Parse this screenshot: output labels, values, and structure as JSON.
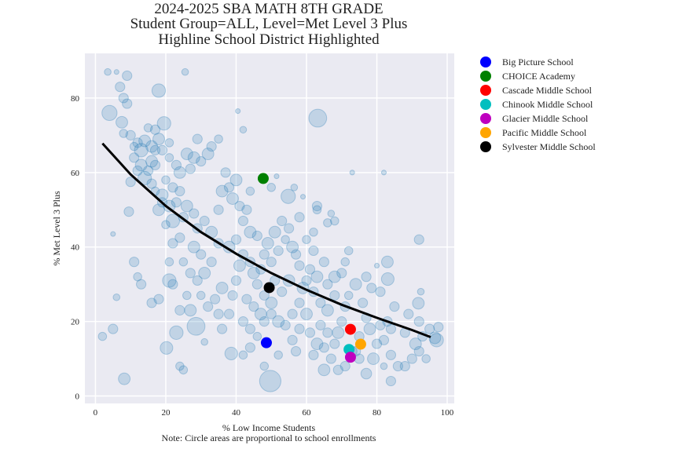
{
  "chart_data": {
    "type": "scatter",
    "title": [
      "2024-2025 SBA MATH 8TH GRADE",
      "Student Group=ALL, Level=Met Level 3 Plus",
      "Highline School District Highlighted"
    ],
    "xlabel": "% Low Income Students",
    "note": "Note: Circle areas are proportional to school enrollments",
    "ylabel": "% Met Level 3 Plus",
    "xlim": [
      -3,
      102
    ],
    "ylim": [
      -2,
      92
    ],
    "xticks": [
      0,
      20,
      40,
      60,
      80,
      100
    ],
    "yticks": [
      0,
      20,
      40,
      60,
      80
    ],
    "grid": true,
    "background_color": "#eaeaf2",
    "background_point_color": "#1f77b4",
    "legend_position": "outside-right",
    "highlighted": [
      {
        "name": "Big Picture School",
        "x": 48.6,
        "y": 14.3,
        "color": "#0000ff"
      },
      {
        "name": "CHOICE Academy",
        "x": 47.7,
        "y": 58.4,
        "color": "#008000"
      },
      {
        "name": "Cascade Middle School",
        "x": 72.5,
        "y": 17.9,
        "color": "#ff0000"
      },
      {
        "name": "Chinook Middle School",
        "x": 72.1,
        "y": 12.5,
        "color": "#00bfbf"
      },
      {
        "name": "Glacier Middle School",
        "x": 72.5,
        "y": 10.4,
        "color": "#bf00bf"
      },
      {
        "name": "Pacific Middle School",
        "x": 75.4,
        "y": 13.9,
        "color": "#ffa500"
      },
      {
        "name": "Sylvester Middle School",
        "x": 49.4,
        "y": 29.1,
        "color": "#000000"
      }
    ],
    "trend_line": {
      "color": "#000000",
      "x": [
        2,
        10,
        20,
        30,
        40,
        50,
        60,
        70,
        80,
        90,
        95.3
      ],
      "y": [
        67.8,
        59.5,
        51,
        44,
        38.2,
        33,
        28.5,
        24.5,
        21,
        17.7,
        15.8
      ]
    },
    "background_points": [
      [
        3.5,
        87,
        1
      ],
      [
        6,
        87,
        0.5
      ],
      [
        9,
        86,
        2
      ],
      [
        7,
        83,
        2
      ],
      [
        8,
        80,
        2
      ],
      [
        9,
        78.5,
        2
      ],
      [
        4,
        76,
        5
      ],
      [
        18,
        82,
        4
      ],
      [
        7.5,
        73.5,
        3
      ],
      [
        19.5,
        73.2,
        4
      ],
      [
        10,
        70,
        2
      ],
      [
        12,
        68,
        2
      ],
      [
        8,
        70.5,
        1.5
      ],
      [
        14,
        68.5,
        3
      ],
      [
        16,
        67,
        3
      ],
      [
        15,
        72,
        1.5
      ],
      [
        17,
        71.5,
        2
      ],
      [
        18,
        69,
        3
      ],
      [
        17,
        66,
        2
      ],
      [
        19,
        66,
        2
      ],
      [
        21,
        68,
        1.5
      ],
      [
        11,
        67,
        1.5
      ],
      [
        13,
        66,
        4
      ],
      [
        11,
        64,
        2
      ],
      [
        13,
        62,
        3
      ],
      [
        16,
        63,
        3
      ],
      [
        15,
        60.5,
        2
      ],
      [
        17,
        62,
        2
      ],
      [
        14,
        58.5,
        4
      ],
      [
        12,
        60.5,
        2
      ],
      [
        10,
        57.5,
        2
      ],
      [
        16,
        57,
        2
      ],
      [
        17,
        55,
        1.5
      ],
      [
        19,
        54,
        3
      ],
      [
        22,
        56,
        2
      ],
      [
        24,
        55,
        2
      ],
      [
        21,
        64,
        1.5
      ],
      [
        23,
        62,
        2
      ],
      [
        24,
        60,
        3
      ],
      [
        26,
        65,
        3
      ],
      [
        27,
        61,
        2
      ],
      [
        28,
        64,
        3
      ],
      [
        30,
        63,
        2
      ],
      [
        32,
        65,
        3
      ],
      [
        33,
        67,
        2
      ],
      [
        35,
        69,
        1.5
      ],
      [
        29,
        69,
        2
      ],
      [
        20,
        58,
        1.5
      ],
      [
        21,
        51,
        3
      ],
      [
        18,
        50,
        3
      ],
      [
        19,
        52,
        2
      ],
      [
        23,
        52,
        2
      ],
      [
        26,
        51,
        3
      ],
      [
        25,
        48,
        2
      ],
      [
        28,
        49,
        2
      ],
      [
        22,
        47,
        4
      ],
      [
        9.5,
        49.5,
        2
      ],
      [
        5,
        43.5,
        0.5
      ],
      [
        25.5,
        87,
        1
      ],
      [
        40.5,
        76.5,
        0.5
      ],
      [
        42,
        71.5,
        1
      ],
      [
        20,
        46,
        1.5
      ],
      [
        24,
        42.5,
        2
      ],
      [
        22,
        41,
        2
      ],
      [
        21,
        36,
        1.5
      ],
      [
        25,
        36,
        1.5
      ],
      [
        27,
        33,
        2
      ],
      [
        28,
        40,
        3
      ],
      [
        30,
        38,
        2
      ],
      [
        29,
        45,
        2
      ],
      [
        31,
        47,
        2
      ],
      [
        33,
        44,
        3
      ],
      [
        35,
        50,
        2
      ],
      [
        36,
        55,
        3
      ],
      [
        38,
        56,
        2
      ],
      [
        40,
        58,
        3
      ],
      [
        37,
        60,
        2
      ],
      [
        39,
        53,
        3
      ],
      [
        41,
        51,
        2
      ],
      [
        43,
        50,
        2
      ],
      [
        44,
        55,
        1.5
      ],
      [
        42,
        47,
        2
      ],
      [
        44,
        44,
        3
      ],
      [
        46,
        43,
        2
      ],
      [
        40,
        42,
        2
      ],
      [
        38,
        40,
        3
      ],
      [
        35,
        41,
        2
      ],
      [
        33,
        36,
        2
      ],
      [
        31,
        33,
        3
      ],
      [
        29,
        31,
        2
      ],
      [
        30,
        27,
        1.5
      ],
      [
        32,
        24,
        2
      ],
      [
        34,
        26,
        2
      ],
      [
        36,
        29,
        3
      ],
      [
        35,
        22,
        2
      ],
      [
        26,
        27,
        1.5
      ],
      [
        27,
        23,
        3
      ],
      [
        24,
        23,
        2
      ],
      [
        22,
        30,
        2
      ],
      [
        21,
        31,
        4
      ],
      [
        16,
        25,
        2
      ],
      [
        18,
        26,
        2
      ],
      [
        13,
        30,
        2
      ],
      [
        11,
        36,
        2
      ],
      [
        12,
        32,
        1.5
      ],
      [
        6,
        26.5,
        1
      ],
      [
        5,
        18,
        2
      ],
      [
        2,
        16,
        1.5
      ],
      [
        24,
        8,
        1.5
      ],
      [
        25,
        7,
        1.5
      ],
      [
        31,
        14.5,
        1
      ],
      [
        23,
        17,
        4
      ],
      [
        36,
        18,
        2
      ],
      [
        38,
        22,
        2
      ],
      [
        39,
        27,
        2
      ],
      [
        40,
        31,
        2
      ],
      [
        41,
        35,
        3
      ],
      [
        42,
        38,
        2
      ],
      [
        44,
        36,
        2
      ],
      [
        45,
        33,
        3
      ],
      [
        46,
        30,
        2
      ],
      [
        47,
        34,
        2
      ],
      [
        48,
        38,
        2
      ],
      [
        49,
        41,
        3
      ],
      [
        50,
        36,
        2
      ],
      [
        52,
        39,
        2
      ],
      [
        51,
        44,
        3
      ],
      [
        53,
        47,
        2
      ],
      [
        55,
        45,
        2
      ],
      [
        54,
        42,
        1.5
      ],
      [
        56,
        40,
        3
      ],
      [
        57,
        38,
        2
      ],
      [
        58,
        35,
        2
      ],
      [
        55,
        31,
        3
      ],
      [
        53,
        28,
        2
      ],
      [
        51,
        31,
        2
      ],
      [
        50,
        25,
        3
      ],
      [
        48,
        27,
        2
      ],
      [
        47,
        22,
        3
      ],
      [
        45,
        24,
        2
      ],
      [
        43,
        26,
        2
      ],
      [
        42,
        20,
        2
      ],
      [
        44,
        18,
        2
      ],
      [
        46,
        16,
        1.5
      ],
      [
        48,
        20,
        2
      ],
      [
        50,
        22,
        2
      ],
      [
        52,
        20,
        3
      ],
      [
        54,
        19,
        2
      ],
      [
        56,
        22,
        2
      ],
      [
        58,
        25,
        2
      ],
      [
        59,
        29,
        3
      ],
      [
        60,
        31,
        2
      ],
      [
        61,
        34,
        2
      ],
      [
        62,
        28,
        2
      ],
      [
        63,
        32,
        3
      ],
      [
        64,
        25,
        2
      ],
      [
        60,
        22,
        3
      ],
      [
        58,
        18,
        2
      ],
      [
        56,
        15,
        2
      ],
      [
        61,
        17,
        2
      ],
      [
        62,
        11,
        2
      ],
      [
        63,
        14,
        3
      ],
      [
        64,
        19,
        2
      ],
      [
        66,
        23,
        3
      ],
      [
        66,
        17,
        2
      ],
      [
        65,
        13,
        2
      ],
      [
        67,
        10,
        2
      ],
      [
        68,
        14,
        2
      ],
      [
        69,
        17,
        3
      ],
      [
        70,
        20,
        2
      ],
      [
        71,
        24,
        2
      ],
      [
        68,
        27,
        2
      ],
      [
        66,
        30,
        2
      ],
      [
        68,
        32,
        3
      ],
      [
        70,
        33,
        2
      ],
      [
        71,
        36,
        1.5
      ],
      [
        72,
        39,
        1.5
      ],
      [
        63,
        51,
        2
      ],
      [
        63,
        50,
        1.5
      ],
      [
        67,
        49,
        1
      ],
      [
        68,
        47,
        1.5
      ],
      [
        66,
        46.5,
        1.5
      ],
      [
        59,
        53.5,
        0.5
      ],
      [
        56.5,
        56,
        1
      ],
      [
        50,
        56,
        1.5
      ],
      [
        51.5,
        59,
        0.5
      ],
      [
        73,
        60,
        0.5
      ],
      [
        82,
        60,
        0.5
      ],
      [
        74,
        30,
        3
      ],
      [
        76,
        25,
        2
      ],
      [
        77,
        21,
        2
      ],
      [
        78,
        18,
        3
      ],
      [
        75,
        16,
        2
      ],
      [
        74,
        12,
        2
      ],
      [
        75,
        10,
        2
      ],
      [
        77,
        6,
        2.5
      ],
      [
        79,
        10,
        3
      ],
      [
        80,
        14,
        2
      ],
      [
        81,
        19,
        2
      ],
      [
        83,
        20,
        2
      ],
      [
        84,
        18,
        2
      ],
      [
        82,
        15,
        2
      ],
      [
        84,
        11,
        2
      ],
      [
        86,
        8,
        2
      ],
      [
        88,
        8,
        2
      ],
      [
        90,
        10,
        2
      ],
      [
        92,
        12,
        2
      ],
      [
        94,
        10,
        1.5
      ],
      [
        91,
        14,
        3
      ],
      [
        93,
        16,
        2
      ],
      [
        92,
        20,
        2
      ],
      [
        95,
        18,
        2
      ],
      [
        97,
        15,
        4
      ],
      [
        97.5,
        18.5,
        2
      ],
      [
        88,
        17,
        2
      ],
      [
        89,
        22,
        2
      ],
      [
        85,
        24,
        2
      ],
      [
        81,
        28,
        2
      ],
      [
        80,
        35,
        0.5
      ],
      [
        83,
        36,
        3
      ],
      [
        92,
        42,
        2
      ],
      [
        92.5,
        28,
        1
      ],
      [
        78.5,
        29,
        2
      ],
      [
        77,
        32,
        2
      ],
      [
        72,
        27,
        1.5
      ],
      [
        65,
        7,
        3
      ],
      [
        69,
        7,
        2
      ],
      [
        71,
        8,
        2
      ],
      [
        73,
        12,
        2
      ],
      [
        82,
        8,
        1
      ],
      [
        84,
        4,
        2
      ],
      [
        65,
        36,
        2
      ],
      [
        62,
        39,
        2
      ],
      [
        60,
        42,
        1.5
      ],
      [
        62,
        44,
        1.5
      ],
      [
        58,
        48,
        2
      ],
      [
        49.7,
        4,
        10
      ],
      [
        63.2,
        74.6,
        7
      ],
      [
        28.6,
        18.7,
        7
      ],
      [
        54.8,
        53.6,
        4.5
      ],
      [
        38.6,
        11.4,
        3.5
      ],
      [
        20.2,
        12.9,
        3.5
      ],
      [
        8.2,
        4.6,
        3
      ],
      [
        83.1,
        31.4,
        3.5
      ],
      [
        91.8,
        24.9,
        3
      ],
      [
        96.5,
        15.6,
        3
      ],
      [
        48,
        8,
        1.5
      ],
      [
        44,
        13,
        2
      ],
      [
        42,
        11,
        1.5
      ],
      [
        52,
        11,
        1.5
      ],
      [
        57,
        12,
        2
      ]
    ]
  }
}
